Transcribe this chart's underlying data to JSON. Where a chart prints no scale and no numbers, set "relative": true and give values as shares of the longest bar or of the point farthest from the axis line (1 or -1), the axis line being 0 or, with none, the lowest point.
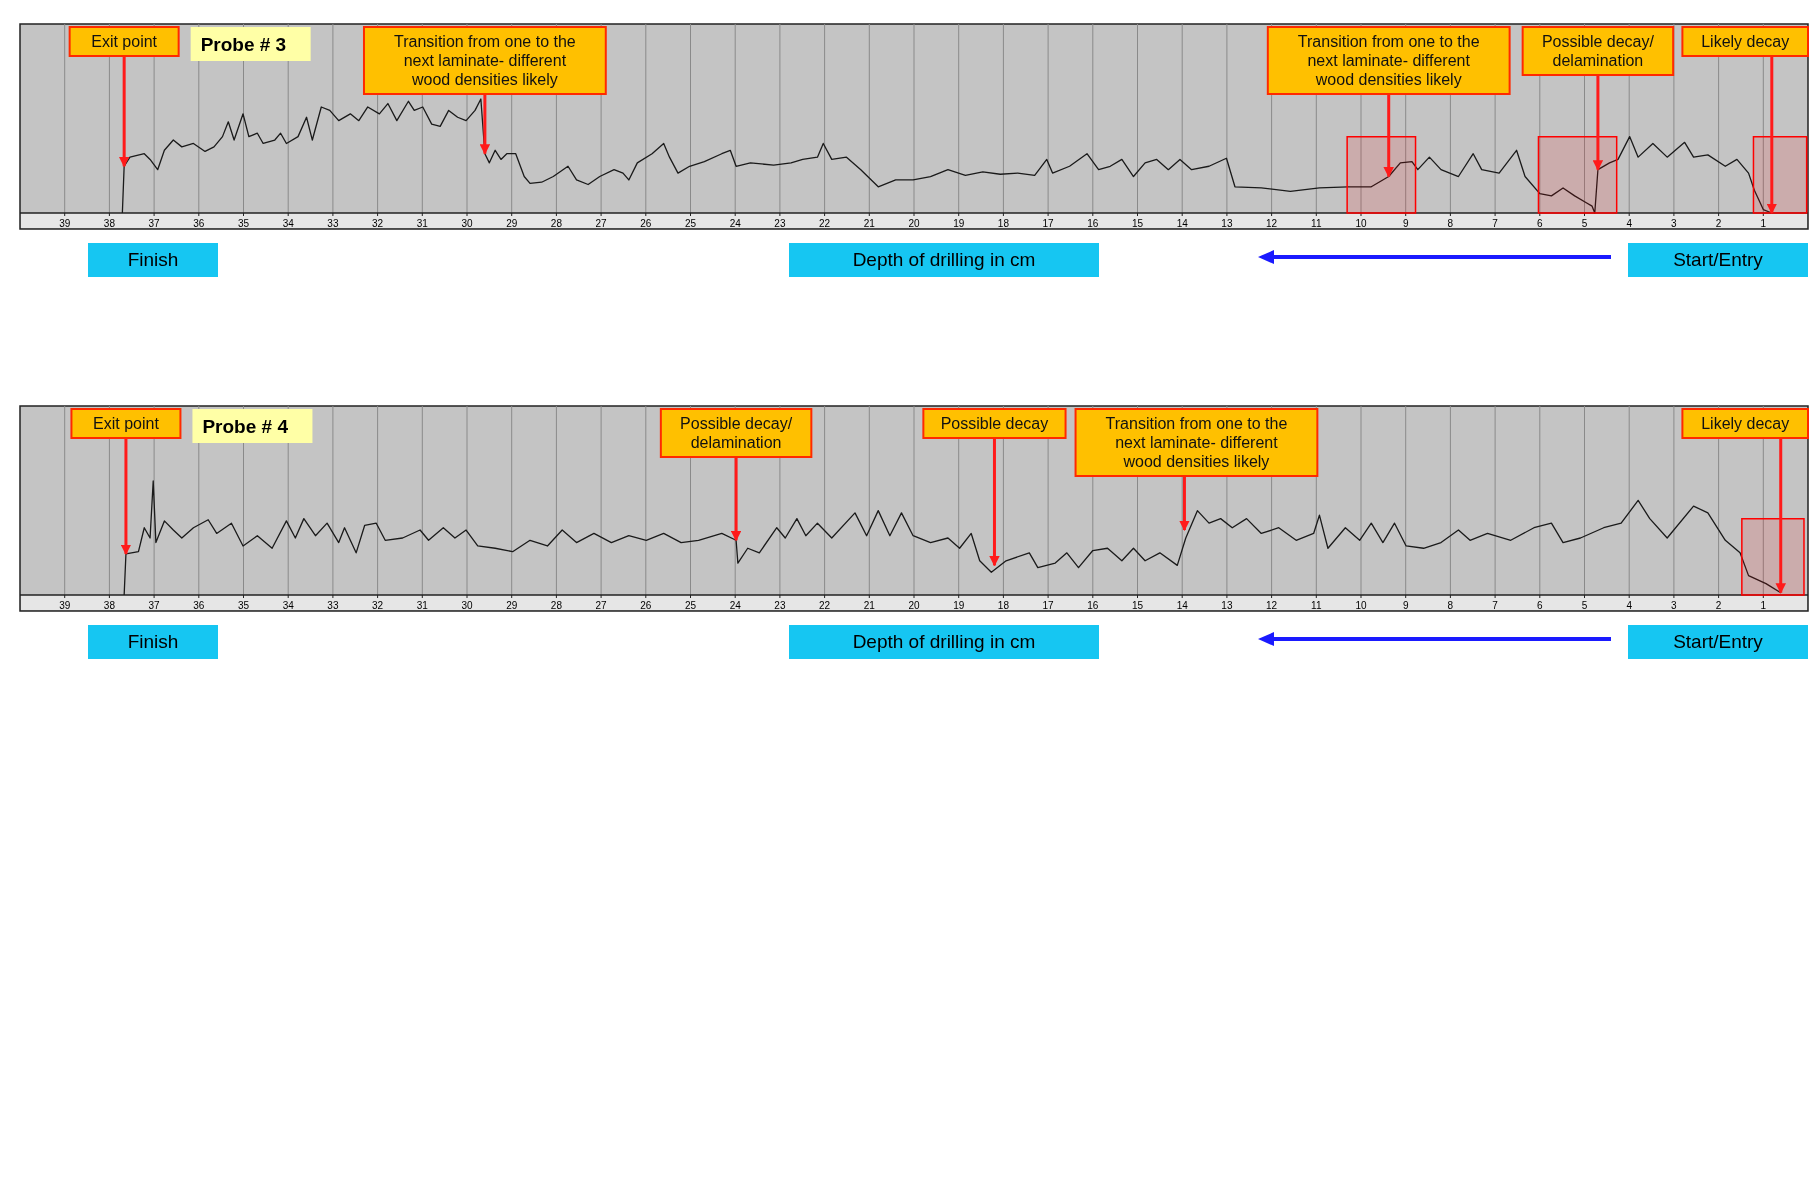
{
  "chart_data": [
    {
      "type": "line",
      "title": "Probe # 3",
      "xlabel": "Depth of drilling in cm",
      "relative": true,
      "xlim": [
        40,
        0
      ],
      "grid": "x",
      "xticks": [
        39,
        38,
        37,
        36,
        35,
        34,
        33,
        32,
        31,
        30,
        29,
        28,
        27,
        26,
        25,
        24,
        23,
        22,
        21,
        20,
        19,
        18,
        17,
        16,
        15,
        14,
        13,
        12,
        11,
        10,
        9,
        8,
        7,
        6,
        5,
        4,
        3,
        2,
        1
      ],
      "series": [
        {
          "color": "#1a1a1a",
          "x": [
            37.71,
            37.67,
            37.54,
            37.22,
            37.09,
            36.92,
            36.77,
            36.57,
            36.38,
            36.12,
            35.86,
            35.66,
            35.47,
            35.34,
            35.21,
            35.01,
            34.88,
            34.69,
            34.56,
            34.3,
            34.17,
            34.04,
            33.78,
            33.59,
            33.46,
            33.26,
            33.07,
            32.87,
            32.61,
            32.42,
            32.22,
            31.96,
            31.77,
            31.57,
            31.31,
            31.18,
            30.99,
            30.79,
            30.6,
            30.41,
            30.21,
            30.02,
            29.82,
            29.69,
            29.6,
            29.5,
            29.37,
            29.24,
            29.11,
            28.91,
            28.72,
            28.59,
            28.33,
            28.07,
            27.74,
            27.55,
            27.29,
            27.03,
            26.71,
            26.51,
            26.38,
            26.19,
            25.86,
            25.6,
            25.47,
            25.28,
            25.02,
            24.69,
            24.3,
            24.11,
            23.98,
            23.66,
            23.14,
            22.75,
            22.49,
            22.16,
            22.03,
            21.84,
            21.51,
            21.19,
            20.8,
            20.41,
            20.02,
            19.63,
            19.24,
            18.85,
            18.46,
            18.07,
            17.68,
            17.3,
            17.03,
            16.9,
            16.52,
            16.13,
            15.87,
            15.61,
            15.35,
            15.09,
            14.83,
            14.57,
            14.31,
            14.05,
            13.79,
            13.4,
            13.01,
            12.82,
            12.23,
            11.58,
            10.93,
            10.29,
            9.77,
            9.38,
            9.12,
            8.86,
            8.73,
            8.47,
            8.21,
            7.82,
            7.49,
            7.3,
            6.91,
            6.52,
            6.33,
            6.0,
            5.74,
            5.48,
            5.22,
            4.96,
            4.83,
            4.77,
            4.7,
            4.44,
            4.25,
            3.99,
            3.8,
            3.47,
            3.15,
            2.76,
            2.56,
            2.24,
            1.85,
            1.59,
            1.33,
            1.2,
            1.0,
            0.81
          ],
          "values": [
            0,
            0.41,
            0.49,
            0.52,
            0.47,
            0.38,
            0.55,
            0.64,
            0.58,
            0.61,
            0.54,
            0.58,
            0.67,
            0.8,
            0.64,
            0.87,
            0.67,
            0.7,
            0.61,
            0.64,
            0.7,
            0.61,
            0.67,
            0.84,
            0.64,
            0.93,
            0.9,
            0.81,
            0.87,
            0.81,
            0.93,
            0.87,
            0.96,
            0.81,
            0.98,
            0.9,
            0.93,
            0.78,
            0.76,
            0.9,
            0.84,
            0.81,
            0.9,
            1.0,
            0.52,
            0.44,
            0.55,
            0.47,
            0.52,
            0.52,
            0.32,
            0.26,
            0.27,
            0.32,
            0.41,
            0.29,
            0.25,
            0.32,
            0.38,
            0.35,
            0.29,
            0.44,
            0.52,
            0.61,
            0.49,
            0.35,
            0.41,
            0.45,
            0.52,
            0.55,
            0.41,
            0.44,
            0.42,
            0.44,
            0.47,
            0.49,
            0.61,
            0.47,
            0.49,
            0.38,
            0.23,
            0.29,
            0.29,
            0.32,
            0.38,
            0.33,
            0.36,
            0.34,
            0.35,
            0.33,
            0.47,
            0.35,
            0.41,
            0.52,
            0.38,
            0.41,
            0.47,
            0.32,
            0.44,
            0.47,
            0.38,
            0.47,
            0.38,
            0.41,
            0.48,
            0.23,
            0.22,
            0.19,
            0.22,
            0.23,
            0.23,
            0.32,
            0.44,
            0.45,
            0.38,
            0.49,
            0.38,
            0.32,
            0.52,
            0.38,
            0.35,
            0.55,
            0.32,
            0.17,
            0.15,
            0.22,
            0.15,
            0.09,
            0.06,
            0,
            0.38,
            0.44,
            0.47,
            0.67,
            0.49,
            0.61,
            0.49,
            0.62,
            0.49,
            0.51,
            0.41,
            0.47,
            0.35,
            0.2,
            0.03,
            0
          ]
        }
      ],
      "bands": [
        {
          "axis": "x",
          "from": 10.31,
          "to": 8.78,
          "label": null,
          "color": "#ff0000"
        },
        {
          "axis": "x",
          "from": 6.03,
          "to": 4.28,
          "label": null,
          "color": "#ff0000"
        },
        {
          "axis": "x",
          "from": 1.22,
          "to": 0.03,
          "label": null,
          "color": "#ff0000"
        }
      ],
      "annotations": [
        {
          "text": "Exit point",
          "x": 37.67,
          "y": 0.41
        },
        {
          "text": "Transition from one to the next laminate- different wood densities likely",
          "x": 29.6,
          "y": 0.52
        },
        {
          "text": "Transition from one to the next laminate- different wood densities likely",
          "x": 9.38,
          "y": 0.32
        },
        {
          "text": "Possible decay/ delamination",
          "x": 4.7,
          "y": 0.38
        },
        {
          "text": "Likely decay",
          "x": 0.81,
          "y": 0
        },
        "Finish",
        "Start/Entry"
      ]
    },
    {
      "type": "line",
      "title": "Probe # 4",
      "xlabel": "Depth of drilling in cm",
      "relative": true,
      "xlim": [
        40,
        0
      ],
      "grid": "x",
      "xticks": [
        39,
        38,
        37,
        36,
        35,
        34,
        33,
        32,
        31,
        30,
        29,
        28,
        27,
        26,
        25,
        24,
        23,
        22,
        21,
        20,
        19,
        18,
        17,
        16,
        15,
        14,
        13,
        12,
        11,
        10,
        9,
        8,
        7,
        6,
        5,
        4,
        3,
        2,
        1
      ],
      "series": [
        {
          "color": "#1a1a1a",
          "x": [
            37.67,
            37.63,
            37.35,
            37.22,
            37.09,
            37.02,
            36.96,
            36.77,
            36.57,
            36.38,
            36.12,
            35.79,
            35.6,
            35.27,
            35.01,
            34.69,
            34.36,
            34.04,
            33.84,
            33.65,
            33.39,
            33.13,
            32.87,
            32.74,
            32.48,
            32.29,
            32.03,
            31.83,
            31.44,
            31.05,
            30.86,
            30.53,
            30.27,
            30.02,
            29.76,
            29.37,
            28.98,
            28.59,
            28.2,
            27.87,
            27.55,
            27.16,
            26.77,
            26.38,
            25.99,
            25.6,
            25.21,
            24.82,
            24.3,
            23.98,
            23.94,
            23.72,
            23.46,
            23.07,
            22.88,
            22.62,
            22.42,
            22.16,
            21.84,
            21.32,
            21.06,
            20.8,
            20.54,
            20.28,
            20.02,
            19.63,
            19.24,
            18.98,
            18.72,
            18.53,
            18.27,
            17.94,
            17.42,
            17.23,
            16.84,
            16.58,
            16.32,
            16.0,
            15.67,
            15.35,
            15.09,
            14.83,
            14.5,
            14.11,
            13.92,
            13.66,
            13.4,
            13.14,
            12.88,
            12.56,
            12.23,
            11.84,
            11.45,
            11.06,
            10.93,
            10.74,
            10.35,
            10.03,
            9.77,
            9.51,
            9.25,
            8.99,
            8.6,
            8.21,
            7.82,
            7.56,
            7.17,
            6.65,
            6.13,
            5.74,
            5.48,
            5.09,
            4.57,
            4.18,
            3.8,
            3.54,
            3.15,
            2.56,
            2.24,
            1.85,
            1.52,
            1.33,
            0.94,
            0.61
          ],
          "values": [
            0,
            0.36,
            0.38,
            0.59,
            0.5,
            1.0,
            0.46,
            0.65,
            0.57,
            0.5,
            0.59,
            0.66,
            0.54,
            0.63,
            0.43,
            0.52,
            0.41,
            0.65,
            0.5,
            0.67,
            0.52,
            0.63,
            0.46,
            0.59,
            0.37,
            0.61,
            0.63,
            0.48,
            0.5,
            0.57,
            0.48,
            0.59,
            0.5,
            0.57,
            0.43,
            0.41,
            0.38,
            0.48,
            0.43,
            0.57,
            0.46,
            0.54,
            0.46,
            0.52,
            0.48,
            0.54,
            0.46,
            0.48,
            0.54,
            0.48,
            0.28,
            0.41,
            0.37,
            0.59,
            0.5,
            0.67,
            0.52,
            0.63,
            0.5,
            0.72,
            0.52,
            0.74,
            0.52,
            0.72,
            0.52,
            0.46,
            0.5,
            0.41,
            0.54,
            0.3,
            0.2,
            0.3,
            0.37,
            0.24,
            0.28,
            0.37,
            0.24,
            0.39,
            0.41,
            0.3,
            0.41,
            0.3,
            0.37,
            0.26,
            0.5,
            0.74,
            0.63,
            0.67,
            0.59,
            0.67,
            0.54,
            0.59,
            0.48,
            0.54,
            0.7,
            0.41,
            0.59,
            0.48,
            0.63,
            0.46,
            0.63,
            0.43,
            0.41,
            0.46,
            0.57,
            0.48,
            0.54,
            0.48,
            0.59,
            0.63,
            0.46,
            0.5,
            0.59,
            0.63,
            0.83,
            0.67,
            0.5,
            0.78,
            0.72,
            0.48,
            0.37,
            0.17,
            0.1,
            0.02
          ]
        }
      ],
      "bands": [
        {
          "axis": "x",
          "from": 1.48,
          "to": 0.09,
          "label": null,
          "color": "#ff0000"
        }
      ],
      "annotations": [
        {
          "text": "Exit point",
          "x": 37.63,
          "y": 0.36
        },
        {
          "text": "Possible decay/ delamination",
          "x": 23.98,
          "y": 0.48
        },
        {
          "text": "Possible decay",
          "x": 18.2,
          "y": 0.26
        },
        {
          "text": "Transition from one to the next laminate- different wood densities likely",
          "x": 13.95,
          "y": 0.57
        },
        {
          "text": "Likely decay",
          "x": 0.61,
          "y": 0.02
        },
        "Finish",
        "Start/Entry"
      ]
    }
  ]
}
